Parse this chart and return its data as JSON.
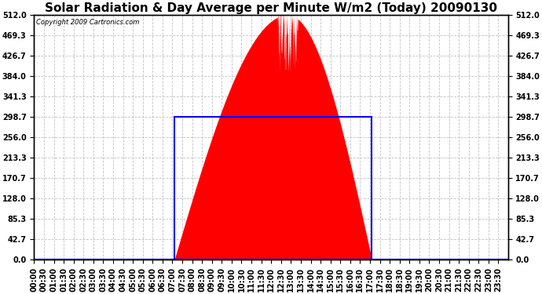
{
  "title": "Solar Radiation & Day Average per Minute W/m2 (Today) 20090130",
  "copyright": "Copyright 2009 Cartronics.com",
  "ylim": [
    0,
    512
  ],
  "yticks": [
    0.0,
    42.7,
    85.3,
    128.0,
    170.7,
    213.3,
    256.0,
    298.7,
    341.3,
    384.0,
    426.7,
    469.3,
    512.0
  ],
  "day_average": 298.7,
  "fill_color": "#FF0000",
  "line_color": "#0000FF",
  "bg_color": "#FFFFFF",
  "grid_color": "#BBBBBB",
  "title_fontsize": 11,
  "tick_fontsize": 7,
  "sunrise_min": 426,
  "sunset_min": 1026,
  "peak_min": 771,
  "peak_value": 512,
  "n_minutes": 1440
}
